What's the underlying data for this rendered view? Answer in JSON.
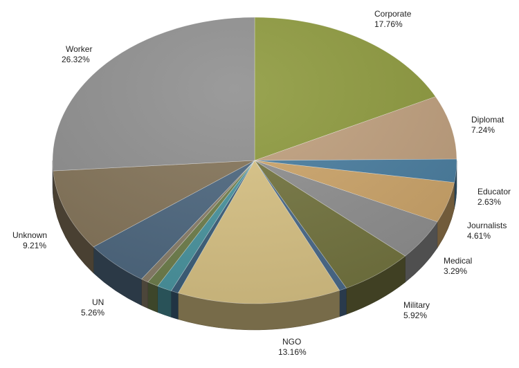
{
  "chart_data": {
    "type": "pie",
    "title": "",
    "slices": [
      {
        "label": "Corporate",
        "value": 17.76,
        "display": "17.76%",
        "color": "#8e9a3e"
      },
      {
        "label": "Diplomat",
        "value": 7.24,
        "display": "7.24%",
        "color": "#c0a07e"
      },
      {
        "label": "Educator",
        "value": 2.63,
        "display": "2.63%",
        "color": "#4a7ea0"
      },
      {
        "label": "",
        "value": 4.61,
        "display": "",
        "color": "#cda56a"
      },
      {
        "label": "Journalists",
        "value": 4.61,
        "display": "4.61%",
        "color": "#909090"
      },
      {
        "label": "Military",
        "value": 5.92,
        "display": "5.92%",
        "color": "#747540"
      },
      {
        "label": "",
        "value": 0.6,
        "display": "",
        "color": "#4a6a8a"
      },
      {
        "label": "NGO",
        "value": 13.16,
        "display": "13.16%",
        "color": "#d9c385"
      },
      {
        "label": "",
        "value": 0.6,
        "display": "",
        "color": "#3c5f7a"
      },
      {
        "label": "",
        "value": 1.2,
        "display": "",
        "color": "#4a95a0"
      },
      {
        "label": "",
        "value": 0.9,
        "display": "",
        "color": "#6f7f4c"
      },
      {
        "label": "",
        "value": 0.6,
        "display": "",
        "color": "#8a7f6a"
      },
      {
        "label": "UN",
        "value": 5.26,
        "display": "5.26%",
        "color": "#4e6880"
      },
      {
        "label": "Unknown",
        "value": 9.21,
        "display": "9.21%",
        "color": "#85755a"
      },
      {
        "label": "Worker",
        "value": 26.32,
        "display": "26.32%",
        "color": "#909090"
      }
    ],
    "legend_placement": "outside labels",
    "medical": {
      "label": "Medical",
      "value": 3.29,
      "display": "3.29%"
    }
  }
}
